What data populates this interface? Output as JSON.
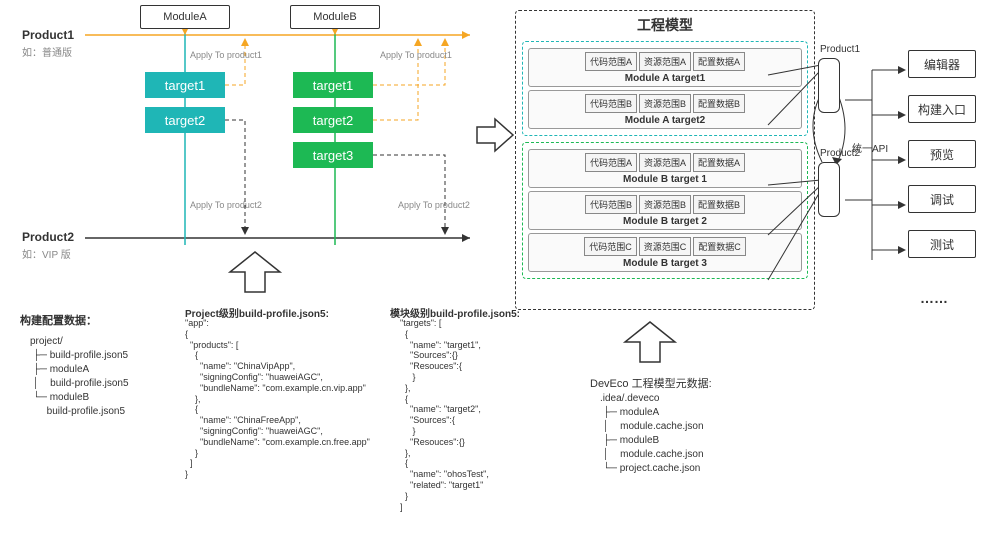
{
  "left": {
    "moduleA": "ModuleA",
    "moduleB": "ModuleB",
    "product1": "Product1",
    "product1_sub": "如：普通版",
    "product2": "Product2",
    "product2_sub": "如：VIP 版",
    "apply1": "Apply To product1",
    "apply2": "Apply To product2",
    "targets_a": [
      "target1",
      "target2"
    ],
    "targets_b": [
      "target1",
      "target2",
      "target3"
    ],
    "colors": {
      "teal": "#1fb6b6",
      "green": "#1db954",
      "orange": "#f5a623",
      "black": "#333"
    }
  },
  "center": {
    "title": "工程模型",
    "module_a_rows": [
      {
        "cells": [
          "代码范围A",
          "资源范围A",
          "配置数据A"
        ],
        "label": "Module A target1"
      },
      {
        "cells": [
          "代码范围B",
          "资源范围B",
          "配置数据B"
        ],
        "label": "Module A target2"
      }
    ],
    "module_b_rows": [
      {
        "cells": [
          "代码范围A",
          "资源范围A",
          "配置数据A"
        ],
        "label": "Module B target 1"
      },
      {
        "cells": [
          "代码范围B",
          "资源范围B",
          "配置数据B"
        ],
        "label": "Module B target 2"
      },
      {
        "cells": [
          "代码范围C",
          "资源范围C",
          "配置数据C"
        ],
        "label": "Module B target 3"
      }
    ],
    "product1": "Product1",
    "product2": "Product2"
  },
  "right": {
    "api_label": "统一API",
    "items": [
      "编辑器",
      "构建入口",
      "预览",
      "调试",
      "测试"
    ],
    "ellipsis": "……"
  },
  "bottom": {
    "config_title": "构建配置数据：",
    "tree1": "project/\n ├─ build-profile.json5\n ├─ moduleA\n │    build-profile.json5\n └─ moduleB\n      build-profile.json5",
    "code2_title": "Project级别build-profile.json5:",
    "code2": "\"app\":\n{\n  \"products\": [\n    {\n      \"name\": \"ChinaVipApp\",\n      \"signingConfig\": \"huaweiAGC\",\n      \"bundleName\": \"com.example.cn.vip.app\"\n    },\n    {\n      \"name\": \"ChinaFreeApp\",\n      \"signingConfig\": \"huaweiAGC\",\n      \"bundleName\": \"com.example.cn.free.app\"\n    }\n  ]\n}",
    "code3_title": "模块级别build-profile.json5:",
    "code3": "\"targets\": [\n  {\n    \"name\": \"target1\",\n    \"Sources\":{}\n    \"Resouces\":{\n     }\n  },\n  {\n    \"name\": \"target2\",\n    \"Sources\":{\n     }\n    \"Resouces\":{}\n  },\n  {\n    \"name\": \"ohosTest\",\n    \"related\": \"target1\"\n  }\n]",
    "deveco_title": "DevEco 工程模型元数据:",
    "deveco_tree": ".idea/.deveco\n ├─ moduleA\n │    module.cache.json\n ├─ moduleB\n │    module.cache.json\n └─ project.cache.json"
  }
}
